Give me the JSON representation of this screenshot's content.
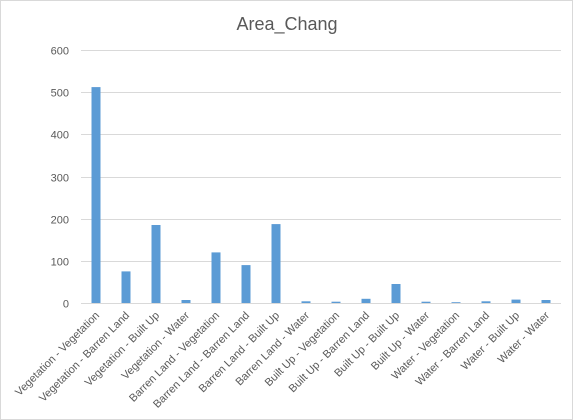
{
  "chart_data": {
    "type": "bar",
    "title": "Area_Chang",
    "xlabel": "",
    "ylabel": "",
    "ylim": [
      0,
      600
    ],
    "yticks": [
      0,
      100,
      200,
      300,
      400,
      500,
      600
    ],
    "grid": true,
    "legend": "none",
    "bar_color": "#5b9bd5",
    "categories": [
      "Vegetation - Vegetation",
      "Vegetation - Barren Land",
      "Vegetation - Built Up",
      "Vegetation - Water",
      "Barren Land - Vegetation",
      "Barren Land - Barren Land",
      "Barren Land - Built Up",
      "Barren Land - Water",
      "Built Up - Vegetation",
      "Built Up - Barren Land",
      "Built Up - Built Up",
      "Built Up - Water",
      "Water - Vegetation",
      "Water - Barren Land",
      "Water - Built Up",
      "Water - Water"
    ],
    "values": [
      512,
      75,
      185,
      7,
      120,
      90,
      187,
      4,
      3,
      10,
      45,
      3,
      2,
      4,
      8,
      7
    ]
  }
}
